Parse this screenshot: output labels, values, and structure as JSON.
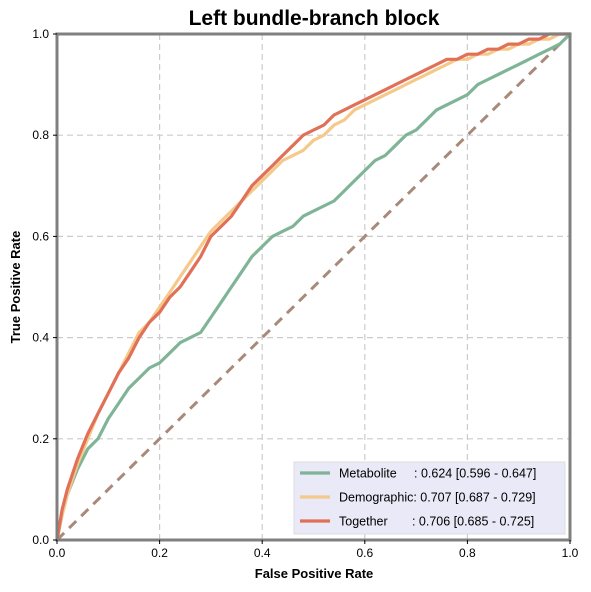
{
  "chart_data": {
    "type": "line",
    "title": "Left bundle-branch block",
    "xlabel": "False Positive Rate",
    "ylabel": "True Positive Rate",
    "xlim": [
      0,
      1
    ],
    "ylim": [
      0,
      1
    ],
    "xticks": [
      "0.0",
      "0.2",
      "0.4",
      "0.6",
      "0.8",
      "1.0"
    ],
    "yticks": [
      "0.0",
      "0.2",
      "0.4",
      "0.6",
      "0.8",
      "1.0"
    ],
    "grid": true,
    "legend_position": "bottom-right",
    "diagonal": {
      "x": [
        0,
        1
      ],
      "y": [
        0,
        1
      ],
      "color": "#a98a7a",
      "style": "dashed"
    },
    "series": [
      {
        "name": "Metabolite",
        "legend": "Metabolite     : 0.624 [0.596 - 0.647]",
        "color": "#7fb596",
        "x": [
          0,
          0.01,
          0.02,
          0.04,
          0.06,
          0.08,
          0.1,
          0.12,
          0.14,
          0.16,
          0.18,
          0.2,
          0.22,
          0.24,
          0.26,
          0.28,
          0.3,
          0.32,
          0.34,
          0.36,
          0.38,
          0.4,
          0.42,
          0.44,
          0.46,
          0.48,
          0.5,
          0.52,
          0.54,
          0.56,
          0.58,
          0.6,
          0.62,
          0.64,
          0.66,
          0.68,
          0.7,
          0.72,
          0.74,
          0.76,
          0.78,
          0.8,
          0.82,
          0.84,
          0.86,
          0.88,
          0.9,
          0.92,
          0.94,
          0.96,
          0.98,
          1.0
        ],
        "y": [
          0,
          0.05,
          0.09,
          0.14,
          0.18,
          0.2,
          0.24,
          0.27,
          0.3,
          0.32,
          0.34,
          0.35,
          0.37,
          0.39,
          0.4,
          0.41,
          0.44,
          0.47,
          0.5,
          0.53,
          0.56,
          0.58,
          0.6,
          0.61,
          0.62,
          0.64,
          0.65,
          0.66,
          0.67,
          0.69,
          0.71,
          0.73,
          0.75,
          0.76,
          0.78,
          0.8,
          0.81,
          0.83,
          0.85,
          0.86,
          0.87,
          0.88,
          0.9,
          0.91,
          0.92,
          0.93,
          0.94,
          0.95,
          0.96,
          0.97,
          0.98,
          1.0
        ]
      },
      {
        "name": "Demographic",
        "legend": "Demographic: 0.707 [0.687 - 0.729]",
        "color": "#f5c98a",
        "x": [
          0,
          0.01,
          0.02,
          0.04,
          0.06,
          0.08,
          0.1,
          0.12,
          0.14,
          0.16,
          0.18,
          0.2,
          0.22,
          0.24,
          0.26,
          0.28,
          0.3,
          0.32,
          0.34,
          0.36,
          0.38,
          0.4,
          0.42,
          0.44,
          0.46,
          0.48,
          0.5,
          0.52,
          0.54,
          0.56,
          0.58,
          0.6,
          0.62,
          0.64,
          0.66,
          0.68,
          0.7,
          0.72,
          0.74,
          0.76,
          0.78,
          0.8,
          0.82,
          0.84,
          0.86,
          0.88,
          0.9,
          0.92,
          0.94,
          0.96,
          0.98,
          1.0
        ],
        "y": [
          0,
          0.05,
          0.09,
          0.15,
          0.2,
          0.25,
          0.29,
          0.33,
          0.37,
          0.41,
          0.43,
          0.46,
          0.49,
          0.52,
          0.55,
          0.58,
          0.61,
          0.63,
          0.65,
          0.67,
          0.69,
          0.71,
          0.73,
          0.75,
          0.76,
          0.77,
          0.79,
          0.8,
          0.82,
          0.83,
          0.85,
          0.86,
          0.87,
          0.88,
          0.89,
          0.9,
          0.91,
          0.92,
          0.93,
          0.94,
          0.95,
          0.95,
          0.96,
          0.96,
          0.97,
          0.97,
          0.98,
          0.98,
          0.99,
          0.99,
          1.0,
          1.0
        ]
      },
      {
        "name": "Together",
        "legend": "Together       : 0.706 [0.685 - 0.725]",
        "color": "#e07158",
        "x": [
          0,
          0.01,
          0.02,
          0.04,
          0.06,
          0.08,
          0.1,
          0.12,
          0.14,
          0.16,
          0.18,
          0.2,
          0.22,
          0.24,
          0.26,
          0.28,
          0.3,
          0.32,
          0.34,
          0.36,
          0.38,
          0.4,
          0.42,
          0.44,
          0.46,
          0.48,
          0.5,
          0.52,
          0.54,
          0.56,
          0.58,
          0.6,
          0.62,
          0.64,
          0.66,
          0.68,
          0.7,
          0.72,
          0.74,
          0.76,
          0.78,
          0.8,
          0.82,
          0.84,
          0.86,
          0.88,
          0.9,
          0.92,
          0.94,
          0.96,
          0.98,
          1.0
        ],
        "y": [
          0,
          0.06,
          0.1,
          0.16,
          0.21,
          0.25,
          0.29,
          0.33,
          0.36,
          0.4,
          0.43,
          0.45,
          0.48,
          0.5,
          0.53,
          0.56,
          0.6,
          0.62,
          0.64,
          0.67,
          0.7,
          0.72,
          0.74,
          0.76,
          0.78,
          0.8,
          0.81,
          0.82,
          0.84,
          0.85,
          0.86,
          0.87,
          0.88,
          0.89,
          0.9,
          0.91,
          0.92,
          0.93,
          0.94,
          0.95,
          0.95,
          0.96,
          0.96,
          0.97,
          0.97,
          0.98,
          0.98,
          0.99,
          0.99,
          1.0,
          1.0,
          1.0
        ]
      }
    ],
    "legend_background": "#e9e9f7",
    "frame_color": "#808080",
    "grid_color": "#cccccc"
  }
}
